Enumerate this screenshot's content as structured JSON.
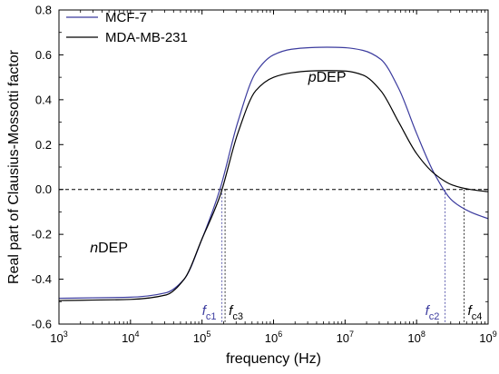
{
  "chart_data": {
    "type": "line",
    "xlabel": "frequency (Hz)",
    "ylabel": "Real part of Clausius-Mossotti factor",
    "x_scale": "log",
    "xlim": [
      1000,
      1000000000
    ],
    "ylim": [
      -0.6,
      0.8
    ],
    "x_ticks": [
      1000,
      10000,
      100000,
      1000000,
      10000000,
      100000000,
      1000000000
    ],
    "x_tick_labels": [
      {
        "base": "10",
        "exp": "3"
      },
      {
        "base": "10",
        "exp": "4"
      },
      {
        "base": "10",
        "exp": "5"
      },
      {
        "base": "10",
        "exp": "6"
      },
      {
        "base": "10",
        "exp": "7"
      },
      {
        "base": "10",
        "exp": "8"
      },
      {
        "base": "10",
        "exp": "9"
      }
    ],
    "y_ticks": [
      -0.6,
      -0.4,
      -0.2,
      0.0,
      0.2,
      0.4,
      0.6,
      0.8
    ],
    "y_tick_labels": [
      "-0.6",
      "-0.4",
      "-0.2",
      "0.0",
      "0.2",
      "0.4",
      "0.6",
      "0.8"
    ],
    "grid": false,
    "legend_position": "top-left",
    "zero_line": {
      "y": 0.0,
      "style": "dashed"
    },
    "series": [
      {
        "name": "MCF-7",
        "color": "#3b3b9e",
        "x": [
          1000,
          10000,
          31623,
          56234,
          100000,
          177828,
          316228,
          562341,
          1000000,
          1778279,
          3162278,
          5623413,
          10000000,
          17782794,
          31622777,
          56234133,
          100000000,
          177827941,
          316227766,
          562341325,
          1000000000
        ],
        "y": [
          -0.485,
          -0.48,
          -0.46,
          -0.4,
          -0.22,
          0.0,
          0.3,
          0.52,
          0.6,
          0.625,
          0.632,
          0.634,
          0.632,
          0.62,
          0.58,
          0.45,
          0.25,
          0.07,
          -0.05,
          -0.1,
          -0.13
        ]
      },
      {
        "name": "MDA-MB-231",
        "color": "#000000",
        "x": [
          1000,
          10000,
          31623,
          56234,
          100000,
          177828,
          316228,
          562341,
          1000000,
          1778279,
          3162278,
          5623413,
          10000000,
          17782794,
          31622777,
          56234133,
          100000000,
          177827941,
          316227766,
          562341325,
          1000000000
        ],
        "y": [
          -0.495,
          -0.49,
          -0.47,
          -0.4,
          -0.22,
          -0.03,
          0.25,
          0.44,
          0.5,
          0.52,
          0.528,
          0.53,
          0.528,
          0.51,
          0.44,
          0.3,
          0.16,
          0.07,
          0.02,
          0.0,
          -0.01
        ]
      }
    ],
    "region_labels": [
      {
        "italic": "n",
        "text": "DEP",
        "x": 5000,
        "y": -0.28
      },
      {
        "italic": "p",
        "text": "DEP",
        "x": 5623413,
        "y": 0.48
      }
    ],
    "crossover_markers": [
      {
        "label": "f",
        "sub": "c1",
        "x": 190000,
        "color": "#3b3b9e"
      },
      {
        "label": "f",
        "sub": "c3",
        "x": 210000,
        "color": "#000000"
      },
      {
        "label": "f",
        "sub": "c2",
        "x": 250000000,
        "color": "#3b3b9e"
      },
      {
        "label": "f",
        "sub": "c4",
        "x": 460000000,
        "color": "#000000"
      }
    ]
  }
}
